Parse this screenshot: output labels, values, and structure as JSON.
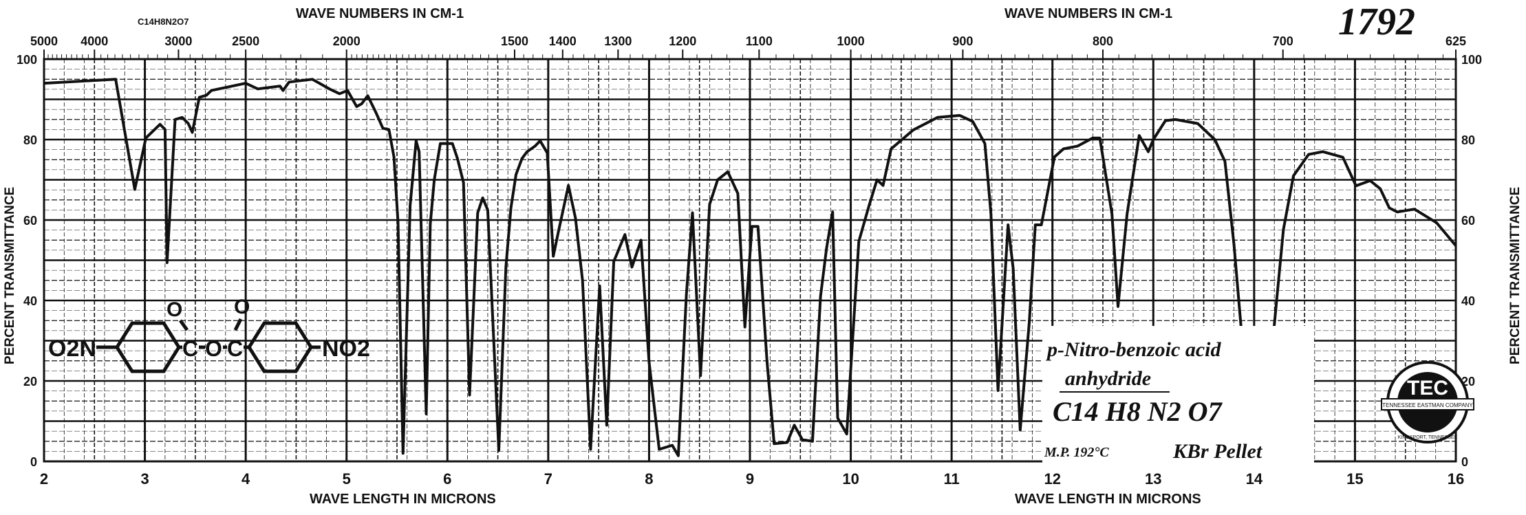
{
  "chart_data": {
    "type": "line",
    "title": "",
    "xlabel": "WAVE LENGTH IN MICRONS",
    "xlabel_secondary": "WAVE LENGTH IN MICRONS",
    "x2label": "WAVE NUMBERS IN CM-1",
    "x2label_secondary": "WAVE NUMBERS IN CM-1",
    "ylabel": "PERCENT TRANSMITTANCE",
    "ylabel_right": "PERCENT TRANSMITTANCE",
    "xlim": [
      2,
      16
    ],
    "ylim": [
      0,
      100
    ],
    "grid": true,
    "x_ticks": [
      "2",
      "3",
      "4",
      "5",
      "6",
      "7",
      "8",
      "9",
      "10",
      "11",
      "12",
      "13",
      "14",
      "15",
      "16"
    ],
    "x_tick_values": [
      2,
      3,
      4,
      5,
      6,
      7,
      8,
      9,
      10,
      11,
      12,
      13,
      14,
      15,
      16
    ],
    "y_ticks": [
      "0",
      "20",
      "40",
      "60",
      "80",
      "100"
    ],
    "y_tick_values": [
      0,
      20,
      40,
      60,
      80,
      100
    ],
    "wavenumber_ticks": [
      {
        "label": "5000",
        "value": 5000
      },
      {
        "label": "4000",
        "value": 4000
      },
      {
        "label": "3000",
        "value": 3000
      },
      {
        "label": "2500",
        "value": 2500
      },
      {
        "label": "2000",
        "value": 2000
      },
      {
        "label": "1500",
        "value": 1500
      },
      {
        "label": "1400",
        "value": 1400
      },
      {
        "label": "1300",
        "value": 1300
      },
      {
        "label": "1200",
        "value": 1200
      },
      {
        "label": "1100",
        "value": 1100
      },
      {
        "label": "1000",
        "value": 1000
      },
      {
        "label": "900",
        "value": 900
      },
      {
        "label": "800",
        "value": 800
      },
      {
        "label": "700",
        "value": 700
      },
      {
        "label": "625",
        "value": 625
      }
    ],
    "series": [
      {
        "color": "#111111",
        "x": [
          2.0,
          2.71,
          2.9,
          3.01,
          3.15,
          3.2,
          3.22,
          3.3,
          3.37,
          3.43,
          3.47,
          3.54,
          3.61,
          3.66,
          3.81,
          4.0,
          4.12,
          4.34,
          4.37,
          4.43,
          4.66,
          4.83,
          4.93,
          5.01,
          5.1,
          5.15,
          5.21,
          5.29,
          5.36,
          5.42,
          5.47,
          5.51,
          5.56,
          5.63,
          5.69,
          5.72,
          5.79,
          5.83,
          5.87,
          5.93,
          6.05,
          6.1,
          6.16,
          6.22,
          6.3,
          6.35,
          6.4,
          6.51,
          6.58,
          6.63,
          6.68,
          6.74,
          6.79,
          6.87,
          6.92,
          6.99,
          7.05,
          7.1,
          7.2,
          7.27,
          7.34,
          7.42,
          7.51,
          7.58,
          7.65,
          7.76,
          7.83,
          7.92,
          8.0,
          8.1,
          8.23,
          8.29,
          8.37,
          8.43,
          8.51,
          8.6,
          8.68,
          8.78,
          8.88,
          8.95,
          9.02,
          9.08,
          9.17,
          9.24,
          9.37,
          9.44,
          9.52,
          9.62,
          9.7,
          9.76,
          9.82,
          9.87,
          9.96,
          10.02,
          10.08,
          10.18,
          10.26,
          10.32,
          10.4,
          10.62,
          10.86,
          11.08,
          11.21,
          11.33,
          11.39,
          11.46,
          11.56,
          11.61,
          11.68,
          11.77,
          11.83,
          11.89,
          12.02,
          12.11,
          12.25,
          12.4,
          12.47,
          12.59,
          12.65,
          12.74,
          12.86,
          12.95,
          13.0,
          13.12,
          13.22,
          13.44,
          13.61,
          13.71,
          13.8,
          13.88,
          14.0,
          14.05,
          14.1,
          14.2,
          14.29,
          14.39,
          14.54,
          14.68,
          14.88,
          15.01,
          15.15,
          15.25,
          15.34,
          15.42,
          15.59,
          15.81,
          16.0
        ],
        "y": [
          94,
          95,
          67.6,
          80.4,
          83.8,
          82.5,
          49.4,
          85,
          85.5,
          84,
          81.8,
          90.5,
          91,
          92.2,
          93,
          94,
          92.6,
          93.3,
          92.2,
          94.3,
          95,
          92.6,
          91.4,
          92.2,
          88.2,
          88.9,
          90.9,
          86.8,
          82.8,
          82.5,
          75.7,
          59.5,
          2,
          63.6,
          79.7,
          77,
          11.8,
          59,
          70,
          79,
          79,
          75.3,
          69.3,
          16.5,
          61.8,
          65.5,
          62.5,
          2.7,
          48.3,
          63,
          71.3,
          75.3,
          77,
          78.4,
          79.7,
          76.7,
          51,
          57,
          68.6,
          60.5,
          45,
          3,
          43.6,
          9,
          49.7,
          56.4,
          48.3,
          55,
          24.7,
          3,
          4,
          1.4,
          41.6,
          61.8,
          21.3,
          63.9,
          70,
          72,
          66.6,
          33.4,
          58.4,
          58.4,
          24.7,
          4.4,
          4.7,
          9,
          5.4,
          5,
          41,
          53,
          62,
          10.8,
          6.8,
          31,
          54.7,
          63.5,
          70,
          68.6,
          77.7,
          82.4,
          85.5,
          86,
          84.5,
          79,
          61.5,
          17.6,
          58.8,
          48,
          7.8,
          34.5,
          58.8,
          58.8,
          75.7,
          77.7,
          78.4,
          80.4,
          80.4,
          61.5,
          38.5,
          61.5,
          81,
          77,
          80,
          84.7,
          85,
          84,
          80,
          74.6,
          54,
          30.5,
          8.8,
          7,
          9.5,
          34,
          57.6,
          71,
          76.3,
          77,
          75.6,
          68.5,
          69.8,
          67.8,
          63,
          62,
          62.7,
          59.3,
          53.6
        ]
      }
    ]
  },
  "annotations": {
    "formula_small": "C14H8N2O7",
    "spectrum_number": "1792",
    "compound_name_line1": "p-Nitro-benzoic acid",
    "compound_name_line2": "anhydride",
    "formula": "C14 H8 N2 O7",
    "melting_point": "M.P. 192°C",
    "sample_prep": "KBr Pellet"
  },
  "structure": {
    "left_group": "O2N",
    "carbonyl_c1": "C",
    "bridge_o": "O",
    "carbonyl_c2": "C",
    "carbonyl_o": "O",
    "right_group": "NO2"
  },
  "logo": {
    "letters": "TEC",
    "ring_text": "TENNESSEE EASTMAN COMPANY",
    "location_text": "KINGSPORT, TENNESSEE"
  }
}
